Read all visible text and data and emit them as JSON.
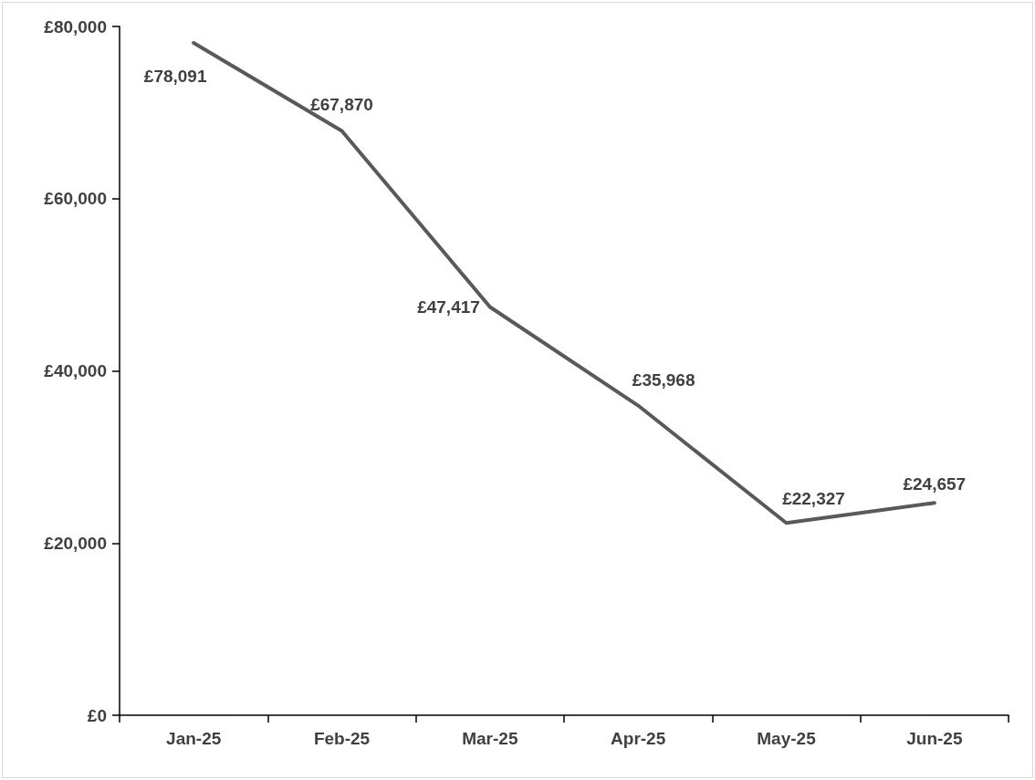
{
  "chart_data": {
    "type": "line",
    "categories": [
      "Jan-25",
      "Feb-25",
      "Mar-25",
      "Apr-25",
      "May-25",
      "Jun-25"
    ],
    "series": [
      {
        "color": "#595959",
        "values": [
          78091,
          67870,
          47417,
          35968,
          22327,
          24657
        ],
        "value_labels": [
          "£78,091",
          "£67,870",
          "£47,417",
          "£35,968",
          "£22,327",
          "£24,657"
        ]
      }
    ],
    "ylim": [
      0,
      80000
    ],
    "yticks": [
      {
        "value": 0,
        "label": "£0"
      },
      {
        "value": 20000,
        "label": "£20,000"
      },
      {
        "value": 40000,
        "label": "£40,000"
      },
      {
        "value": 60000,
        "label": "£60,000"
      },
      {
        "value": 80000,
        "label": "£80,000"
      }
    ],
    "grid": false,
    "marker": "none",
    "line_style": "solid"
  }
}
